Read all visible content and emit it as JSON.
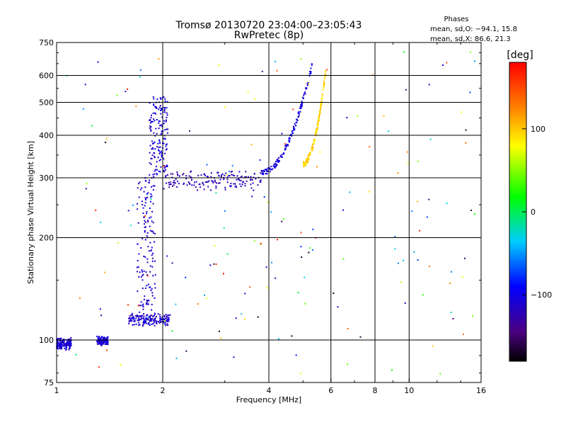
{
  "chart_data": {
    "type": "scatter",
    "title": "Tromsø 20130720 23:04:00–23:05:43",
    "subtitle": "RwPretec (8p)",
    "xlabel": "Frequency [MHz]",
    "ylabel": "Stationary phase Virtual Height [km]",
    "x_scale": "log",
    "y_scale": "log",
    "xlim": [
      1,
      16
    ],
    "ylim": [
      75,
      750
    ],
    "x_ticks": [
      "1",
      "2",
      "4",
      "6",
      "8",
      "10",
      "16"
    ],
    "y_ticks": [
      "75",
      "100",
      "200",
      "300",
      "400",
      "500",
      "600",
      "750"
    ],
    "grid_x": [
      2,
      4,
      6,
      8,
      10
    ],
    "grid_y": [
      100,
      200,
      300,
      400,
      500,
      600
    ],
    "annotation": {
      "heading": "Phases",
      "line1": "mean, sd,O: −94.1, 15.8",
      "line2": "mean, sd,X:  86.6, 21.3"
    },
    "colorbar": {
      "label": "[deg]",
      "range": [
        -180,
        180
      ],
      "ticks": [
        "100",
        "0",
        "−100"
      ],
      "tick_values": [
        100,
        0,
        -100
      ]
    },
    "traces": [
      {
        "name": "o-trace-low-band",
        "x_range": [
          1.0,
          1.1
        ],
        "y_range": [
          95,
          100
        ],
        "phase": -110
      },
      {
        "name": "o-trace-low-band-2",
        "x_range": [
          1.3,
          1.4
        ],
        "y_range": [
          98,
          101
        ],
        "phase": -110
      },
      {
        "name": "o-trace-vertical-rise",
        "x": 1.8,
        "y_range": [
          110,
          300
        ],
        "phase": -110
      },
      {
        "name": "o-trace-cusp",
        "x": 1.95,
        "y_range": [
          300,
          520
        ],
        "phase": -105
      },
      {
        "name": "o-trace-f-layer",
        "x_range": [
          2.0,
          3.8
        ],
        "y_range": [
          280,
          310
        ],
        "phase": -120
      },
      {
        "name": "o-trace-rising-branch",
        "x_range": [
          3.8,
          5.3
        ],
        "y_range": [
          310,
          640
        ],
        "phase": -105
      },
      {
        "name": "x-trace-branch",
        "x_range": [
          5.0,
          5.8
        ],
        "y_range": [
          330,
          620
        ],
        "phase": 95
      },
      {
        "name": "e-layer-band",
        "x_range": [
          1.6,
          2.1
        ],
        "y_range": [
          112,
          118
        ],
        "phase": -110
      }
    ]
  }
}
